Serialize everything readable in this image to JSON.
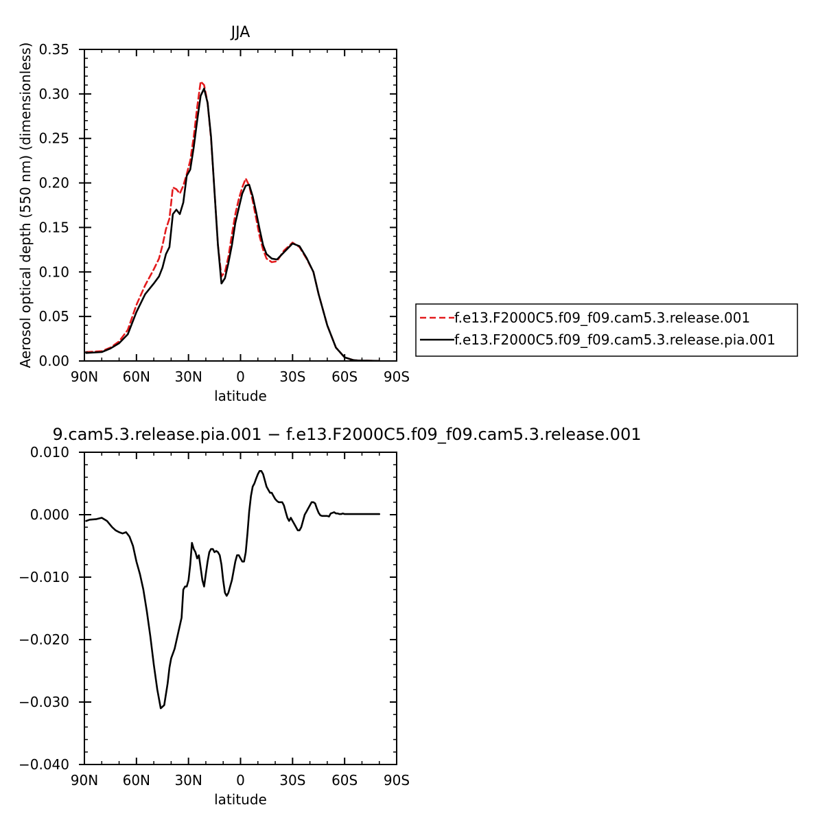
{
  "chart_data": [
    {
      "type": "line",
      "title": "JJA",
      "xlabel": "latitude",
      "ylabel": "Aerosol optical depth (550 nm) (dimensionless)",
      "xlim": [
        -90,
        90
      ],
      "ylim": [
        0,
        0.35
      ],
      "x_tick_values": [
        -90,
        -60,
        -30,
        0,
        30,
        60,
        90
      ],
      "x_tick_labels": [
        "90N",
        "60N",
        "30N",
        "0",
        "30S",
        "60S",
        "90S"
      ],
      "y_tick_values": [
        0,
        0.05,
        0.1,
        0.15,
        0.2,
        0.25,
        0.3,
        0.35
      ],
      "y_tick_labels": [
        "0.00",
        "0.05",
        "0.10",
        "0.15",
        "0.20",
        "0.25",
        "0.30",
        "0.35"
      ],
      "legend_position": "right",
      "series": [
        {
          "name": "f.e13.F2000C5.f09_f09.cam5.3.release.001",
          "color": "#e31a1c",
          "dash": "dashed",
          "x": [
            -89,
            -80,
            -75,
            -70,
            -65,
            -60,
            -55,
            -50,
            -47,
            -45,
            -43,
            -41,
            -39,
            -37,
            -35,
            -33,
            -31,
            -29,
            -27,
            -25,
            -23,
            -21,
            -19,
            -17,
            -15,
            -13,
            -11,
            -9,
            -7,
            -5,
            -3,
            -1,
            1,
            3,
            5,
            7,
            9,
            11,
            13,
            15,
            18,
            21,
            25,
            30,
            34,
            38,
            42,
            45,
            50,
            55,
            60,
            65,
            68,
            70,
            73,
            75,
            80
          ],
          "values": [
            0.01,
            0.011,
            0.015,
            0.022,
            0.035,
            0.063,
            0.085,
            0.103,
            0.115,
            0.13,
            0.148,
            0.16,
            0.195,
            0.193,
            0.188,
            0.197,
            0.21,
            0.225,
            0.252,
            0.285,
            0.314,
            0.31,
            0.29,
            0.25,
            0.19,
            0.13,
            0.095,
            0.1,
            0.117,
            0.142,
            0.165,
            0.182,
            0.195,
            0.205,
            0.197,
            0.18,
            0.16,
            0.14,
            0.125,
            0.115,
            0.111,
            0.112,
            0.124,
            0.133,
            0.128,
            0.115,
            0.1,
            0.075,
            0.04,
            0.015,
            0.004,
            0.001,
            0.0005,
            0.0005,
            0.0003,
            0.0002,
            0.0001
          ]
        },
        {
          "name": "f.e13.F2000C5.f09_f09.cam5.3.release.pia.001",
          "color": "#000000",
          "dash": "solid",
          "x": [
            -89,
            -80,
            -75,
            -70,
            -65,
            -60,
            -55,
            -50,
            -47,
            -45,
            -43,
            -41,
            -39,
            -37,
            -35,
            -33,
            -31,
            -29,
            -27,
            -25,
            -23,
            -21,
            -19,
            -17,
            -15,
            -13,
            -11,
            -9,
            -7,
            -5,
            -3,
            -1,
            1,
            3,
            5,
            7,
            9,
            11,
            13,
            15,
            18,
            21,
            25,
            30,
            34,
            38,
            42,
            45,
            50,
            55,
            60,
            65,
            68,
            70,
            73,
            75,
            80
          ],
          "values": [
            0.009,
            0.01,
            0.014,
            0.02,
            0.03,
            0.055,
            0.075,
            0.087,
            0.095,
            0.105,
            0.12,
            0.128,
            0.165,
            0.17,
            0.165,
            0.178,
            0.208,
            0.215,
            0.24,
            0.27,
            0.298,
            0.306,
            0.29,
            0.252,
            0.19,
            0.13,
            0.087,
            0.093,
            0.11,
            0.13,
            0.155,
            0.172,
            0.188,
            0.197,
            0.198,
            0.185,
            0.167,
            0.148,
            0.13,
            0.12,
            0.115,
            0.114,
            0.122,
            0.132,
            0.129,
            0.116,
            0.1,
            0.075,
            0.04,
            0.015,
            0.004,
            0.001,
            0.0005,
            0.0005,
            0.0003,
            0.0002,
            0.0001
          ]
        }
      ]
    },
    {
      "type": "line",
      "title": "9.cam5.3.release.pia.001 − f.e13.F2000C5.f09_f09.cam5.3.release.001",
      "xlabel": "latitude",
      "ylabel": "",
      "xlim": [
        -90,
        90
      ],
      "ylim": [
        -0.04,
        0.01
      ],
      "x_tick_values": [
        -90,
        -60,
        -30,
        0,
        30,
        60,
        90
      ],
      "x_tick_labels": [
        "90N",
        "60N",
        "30N",
        "0",
        "30S",
        "60S",
        "90S"
      ],
      "y_tick_values": [
        0.01,
        0,
        -0.01,
        -0.02,
        -0.03,
        -0.04
      ],
      "y_tick_labels": [
        "0.010",
        "0.000",
        "−0.010",
        "−0.020",
        "−0.030",
        "−0.040"
      ],
      "series": [
        {
          "color": "#000000",
          "dash": "solid",
          "x": [
            -89,
            -87,
            -83,
            -80,
            -77,
            -74,
            -72,
            -70,
            -68,
            -66,
            -64,
            -62,
            -60,
            -58,
            -56,
            -54,
            -52,
            -50,
            -48,
            -46,
            -44,
            -42,
            -41,
            -40,
            -38,
            -36,
            -34,
            -33,
            -32,
            -31,
            -30,
            -29,
            -28,
            -27,
            -26,
            -25,
            -24,
            -23,
            -22,
            -21,
            -20,
            -19,
            -18,
            -17,
            -16,
            -15,
            -14,
            -13,
            -12,
            -11,
            -10,
            -9,
            -8,
            -7,
            -6,
            -5,
            -4,
            -3,
            -2,
            -1,
            0,
            1,
            2,
            3,
            4,
            5,
            6,
            7,
            8,
            9,
            10,
            11,
            12,
            13,
            14,
            15,
            16,
            17,
            18,
            19,
            20,
            21,
            22,
            23,
            24,
            25,
            26,
            27,
            28,
            29,
            30,
            31,
            32,
            33,
            34,
            35,
            36,
            37,
            38,
            39,
            40,
            41,
            42,
            43,
            44,
            45,
            46,
            47,
            48,
            49,
            50,
            51,
            52,
            53,
            54,
            55,
            56,
            57,
            58,
            59,
            60,
            62,
            64,
            66,
            68,
            69,
            70,
            71,
            72,
            73,
            74,
            75,
            76,
            78,
            80
          ],
          "values": [
            -0.001,
            -0.0008,
            -0.0007,
            -0.0005,
            -0.001,
            -0.002,
            -0.0025,
            -0.0028,
            -0.003,
            -0.0028,
            -0.0035,
            -0.005,
            -0.0075,
            -0.0095,
            -0.012,
            -0.0155,
            -0.0195,
            -0.024,
            -0.028,
            -0.031,
            -0.0305,
            -0.027,
            -0.0245,
            -0.023,
            -0.0215,
            -0.019,
            -0.0165,
            -0.012,
            -0.0115,
            -0.0115,
            -0.0105,
            -0.008,
            -0.0045,
            -0.0055,
            -0.006,
            -0.007,
            -0.0065,
            -0.0085,
            -0.0105,
            -0.0115,
            -0.0095,
            -0.0075,
            -0.006,
            -0.0055,
            -0.0055,
            -0.006,
            -0.0058,
            -0.006,
            -0.0065,
            -0.008,
            -0.0105,
            -0.0125,
            -0.013,
            -0.0125,
            -0.0115,
            -0.0105,
            -0.009,
            -0.0075,
            -0.0065,
            -0.0065,
            -0.007,
            -0.0075,
            -0.0075,
            -0.006,
            -0.003,
            0.0005,
            0.003,
            0.0045,
            0.005,
            0.0058,
            0.0065,
            0.007,
            0.007,
            0.0065,
            0.0055,
            0.0045,
            0.004,
            0.0035,
            0.0035,
            0.003,
            0.0025,
            0.0022,
            0.002,
            0.002,
            0.002,
            0.0015,
            0.0005,
            -0.0005,
            -0.001,
            -0.0005,
            -0.001,
            -0.0015,
            -0.002,
            -0.0025,
            -0.0025,
            -0.002,
            -0.001,
            0.0,
            0.0005,
            0.001,
            0.0015,
            0.002,
            0.002,
            0.0018,
            0.001,
            0.0003,
            -0.0001,
            -0.0002,
            -0.0002,
            -0.0002,
            -0.0002,
            -0.0003,
            0.0002,
            0.0003,
            0.0004,
            0.0002,
            0.0002,
            0.0001,
            0.0001,
            0.0002,
            0.0001,
            0.0001,
            0.0001,
            0.0001,
            0.0001,
            0.0001,
            0.0001,
            0.0001,
            0.0001,
            0.0001,
            0.0001,
            0.0001,
            0.0001,
            0.0001,
            0.0001
          ]
        }
      ]
    }
  ]
}
